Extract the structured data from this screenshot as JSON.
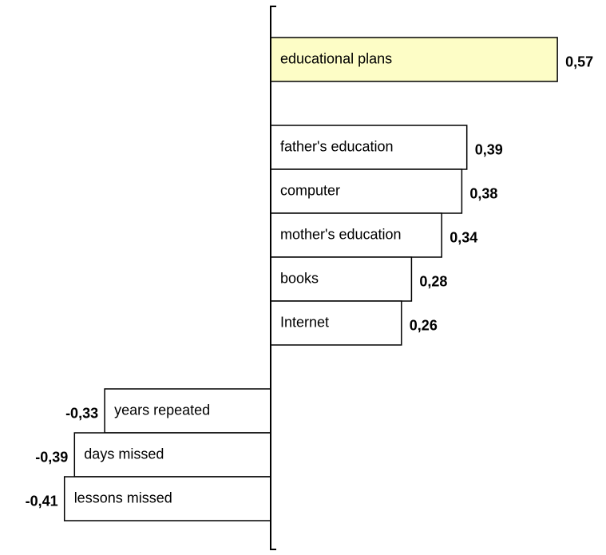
{
  "chart_data": {
    "type": "bar",
    "orientation": "horizontal",
    "categories": [
      "educational plans",
      "father's education",
      "computer",
      "mother's education",
      "books",
      "Internet",
      "years repeated",
      "days missed",
      "lessons missed"
    ],
    "values": [
      0.57,
      0.39,
      0.38,
      0.34,
      0.28,
      0.26,
      -0.33,
      -0.39,
      -0.41
    ],
    "value_labels": [
      "0,57",
      "0,39",
      "0,38",
      "0,34",
      "0,28",
      "0,26",
      "-0,33",
      "-0,39",
      "-0,41"
    ],
    "colors": [
      "#fdfdc6",
      "#ffffff",
      "#ffffff",
      "#ffffff",
      "#ffffff",
      "#ffffff",
      "#ffffff",
      "#ffffff",
      "#ffffff"
    ],
    "xlim": [
      -0.5,
      0.65
    ]
  }
}
